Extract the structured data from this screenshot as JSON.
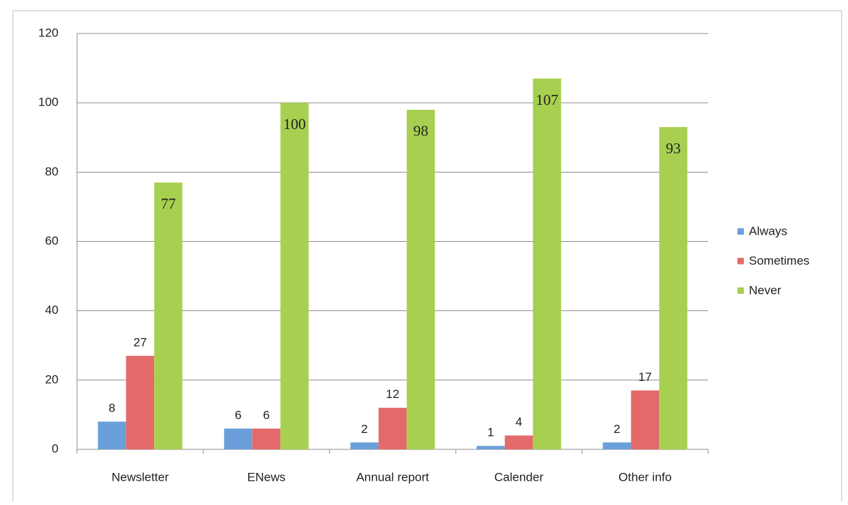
{
  "chart_data": {
    "type": "bar",
    "categories": [
      "Newsletter",
      "ENews",
      "Annual report",
      "Calender",
      "Other info"
    ],
    "series": [
      {
        "name": "Always",
        "color": "#6b9fd9",
        "values": [
          8,
          6,
          2,
          1,
          2
        ]
      },
      {
        "name": "Sometimes",
        "color": "#e46a6a",
        "values": [
          27,
          6,
          12,
          4,
          17
        ]
      },
      {
        "name": "Never",
        "color": "#a8d050",
        "values": [
          77,
          100,
          98,
          107,
          93
        ]
      }
    ],
    "ylim": [
      0,
      120
    ],
    "yticks": [
      0,
      20,
      40,
      60,
      80,
      100,
      120
    ],
    "grid": true,
    "legend": "right"
  }
}
